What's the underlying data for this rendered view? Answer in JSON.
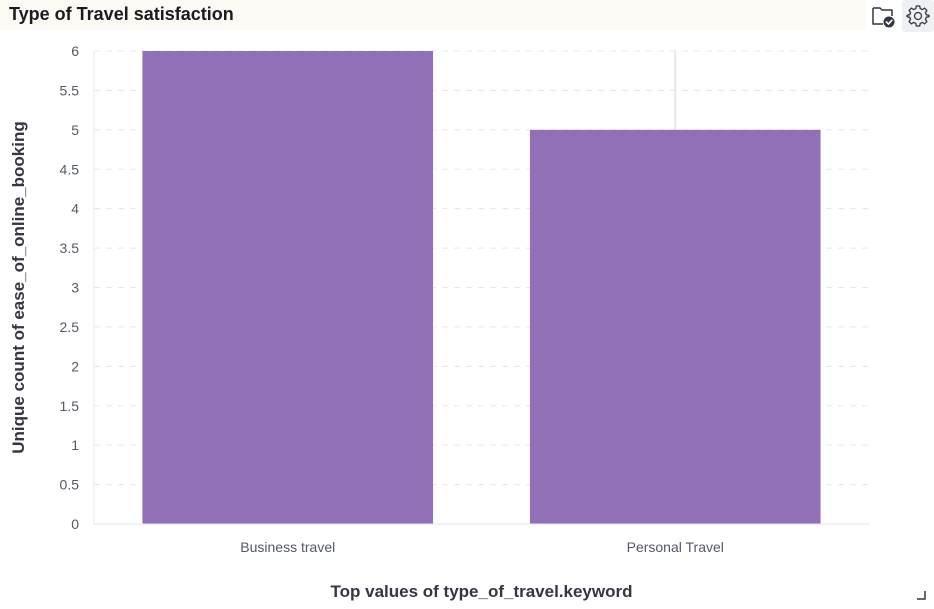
{
  "header": {
    "title": "Type of Travel satisfaction",
    "actions": [
      {
        "name": "folder-check-icon"
      },
      {
        "name": "gear-icon"
      }
    ]
  },
  "chart_data": {
    "type": "bar",
    "title": "",
    "categories": [
      "Business travel",
      "Personal Travel"
    ],
    "values": [
      6,
      5
    ],
    "xlabel": "Top values of type_of_travel.keyword",
    "ylabel": "Unique count of ease_of_online_booking",
    "ylim": [
      0,
      6
    ],
    "yticks": [
      "0",
      "0.5",
      "1",
      "1.5",
      "2",
      "2.5",
      "3",
      "3.5",
      "4",
      "4.5",
      "5",
      "5.5",
      "6"
    ],
    "grid": true,
    "bar_color": "#9170b8"
  }
}
